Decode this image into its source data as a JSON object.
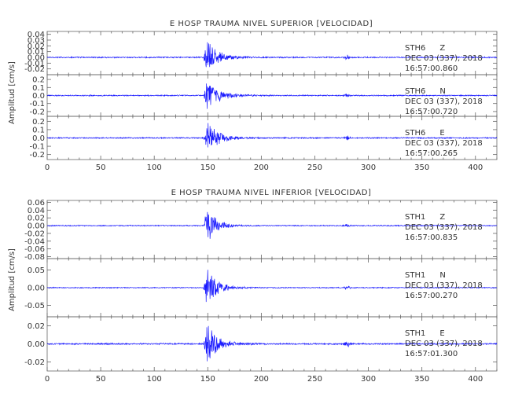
{
  "chart_data": [
    {
      "type": "line",
      "title": "E HOSP TRAUMA NIVEL SUPERIOR [VELOCIDAD]",
      "ylabel": "Amplitud [cm/s]",
      "xlabel": "",
      "xlim": [
        0,
        420
      ],
      "xticks": [
        0,
        50,
        100,
        150,
        200,
        250,
        300,
        350,
        400
      ],
      "line_color": "#1a1aff",
      "grid": false,
      "panels": [
        {
          "station": "STH6",
          "component": "Z",
          "date": "DEC 03 (337), 2018",
          "time": "16:57:00.860",
          "ylim": [
            -0.03,
            0.045
          ],
          "yticks": [
            0.04,
            0.03,
            0.02,
            0.01,
            0.0,
            -0.01,
            -0.02
          ],
          "ytick_labels": [
            "0.04",
            "0.03",
            "0.02",
            "0.01",
            "0.00",
            "-0.01",
            "-0.02"
          ],
          "envelope": {
            "noise": 0.0012,
            "onset_x": 148,
            "peak_amp": 0.032,
            "decay": 10,
            "second_x": 280,
            "second_amp": 0.004
          }
        },
        {
          "station": "STH6",
          "component": "N",
          "date": "DEC 03 (337), 2018",
          "time": "16:57:00.720",
          "ylim": [
            -0.26,
            0.26
          ],
          "yticks": [
            0.2,
            0.1,
            0.0,
            -0.1,
            -0.2
          ],
          "ytick_labels": [
            "0.2",
            "0.1",
            "0.0",
            "-0.1",
            "-0.2"
          ],
          "envelope": {
            "noise": 0.008,
            "onset_x": 148,
            "peak_amp": 0.21,
            "decay": 11,
            "second_x": 280,
            "second_amp": 0.02
          }
        },
        {
          "station": "STH6",
          "component": "E",
          "date": "DEC 03 (337), 2018",
          "time": "16:57:00.265",
          "ylim": [
            -0.26,
            0.26
          ],
          "yticks": [
            0.2,
            0.1,
            0.0,
            -0.1,
            -0.2
          ],
          "ytick_labels": [
            "0.2",
            "0.1",
            "0.0",
            "-0.1",
            "-0.2"
          ],
          "envelope": {
            "noise": 0.008,
            "onset_x": 148,
            "peak_amp": 0.2,
            "decay": 11,
            "second_x": 280,
            "second_amp": 0.03
          }
        }
      ]
    },
    {
      "type": "line",
      "title": "E HOSP TRAUMA NIVEL INFERIOR [VELOCIDAD]",
      "ylabel": "Amplitud [cm/s]",
      "xlabel": "",
      "xlim": [
        0,
        420
      ],
      "xticks": [
        0,
        50,
        100,
        150,
        200,
        250,
        300,
        350,
        400
      ],
      "line_color": "#1a1aff",
      "grid": false,
      "panels": [
        {
          "station": "STH1",
          "component": "Z",
          "date": "DEC 03 (337), 2018",
          "time": "16:57:00.835",
          "ylim": [
            -0.085,
            0.065
          ],
          "yticks": [
            0.06,
            0.04,
            0.02,
            0.0,
            -0.02,
            -0.04,
            -0.06,
            -0.08
          ],
          "ytick_labels": [
            "0.06",
            "0.04",
            "0.02",
            "0.00",
            "-0.02",
            "-0.04",
            "-0.06",
            "-0.08"
          ],
          "envelope": {
            "noise": 0.0015,
            "onset_x": 148,
            "peak_amp": 0.058,
            "decay": 8,
            "second_x": 280,
            "second_amp": 0.004
          }
        },
        {
          "station": "STH1",
          "component": "N",
          "date": "DEC 03 (337), 2018",
          "time": "16:57:00.270",
          "ylim": [
            -0.082,
            0.082
          ],
          "yticks": [
            0.05,
            0.0,
            -0.05
          ],
          "ytick_labels": [
            "0.05",
            "0.00",
            "-0.05"
          ],
          "envelope": {
            "noise": 0.0015,
            "onset_x": 148,
            "peak_amp": 0.07,
            "decay": 9,
            "second_x": 280,
            "second_amp": 0.006
          }
        },
        {
          "station": "STH1",
          "component": "E",
          "date": "DEC 03 (337), 2018",
          "time": "16:57:01.300",
          "ylim": [
            -0.03,
            0.03
          ],
          "yticks": [
            0.02,
            0.0,
            -0.02
          ],
          "ytick_labels": [
            "0.02",
            "0.00",
            "-0.02"
          ],
          "envelope": {
            "noise": 0.0009,
            "onset_x": 148,
            "peak_amp": 0.025,
            "decay": 10,
            "second_x": 280,
            "second_amp": 0.004
          }
        }
      ]
    }
  ]
}
